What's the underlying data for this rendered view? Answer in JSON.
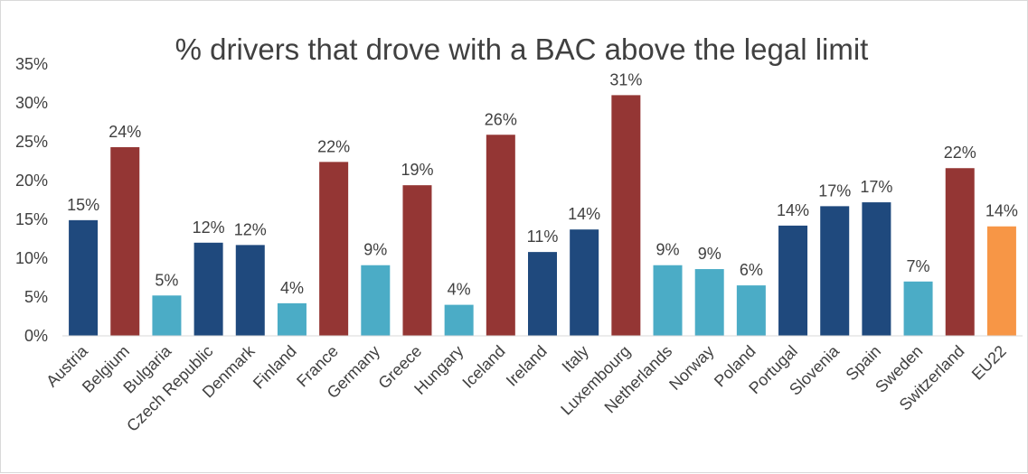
{
  "chart_data": {
    "type": "bar",
    "title": "% drivers that drove with a BAC above the legal limit",
    "xlabel": "",
    "ylabel": "",
    "ylim": [
      0,
      35
    ],
    "yticks": [
      "0%",
      "5%",
      "10%",
      "15%",
      "20%",
      "25%",
      "30%",
      "35%"
    ],
    "grid": false,
    "legend": "none",
    "colors": {
      "dark_blue": "#1f497d",
      "dark_red": "#943634",
      "light_blue": "#4bacc6",
      "orange": "#f79646"
    },
    "categories": [
      "Austria",
      "Belgium",
      "Bulgaria",
      "Czech Republic",
      "Denmark",
      "Finland",
      "France",
      "Germany",
      "Greece",
      "Hungary",
      "Iceland",
      "Ireland",
      "Italy",
      "Luxembourg",
      "Netherlands",
      "Norway",
      "Poland",
      "Portugal",
      "Slovenia",
      "Spain",
      "Sweden",
      "Switzerland",
      "EU22"
    ],
    "values": [
      14.9,
      24.3,
      5.2,
      12.0,
      11.7,
      4.2,
      22.4,
      9.1,
      19.4,
      4.0,
      25.9,
      10.8,
      13.7,
      31.0,
      9.1,
      8.6,
      6.5,
      14.2,
      16.7,
      17.2,
      7.0,
      21.6,
      14.1
    ],
    "data_labels": [
      "15%",
      "24%",
      "5%",
      "12%",
      "12%",
      "4%",
      "22%",
      "9%",
      "19%",
      "4%",
      "26%",
      "11%",
      "14%",
      "31%",
      "9%",
      "9%",
      "6%",
      "14%",
      "17%",
      "17%",
      "7%",
      "22%",
      "14%"
    ],
    "bar_colors": [
      "dark_blue",
      "dark_red",
      "light_blue",
      "dark_blue",
      "dark_blue",
      "light_blue",
      "dark_red",
      "light_blue",
      "dark_red",
      "light_blue",
      "dark_red",
      "dark_blue",
      "dark_blue",
      "dark_red",
      "light_blue",
      "light_blue",
      "light_blue",
      "dark_blue",
      "dark_blue",
      "dark_blue",
      "light_blue",
      "dark_red",
      "orange"
    ]
  }
}
